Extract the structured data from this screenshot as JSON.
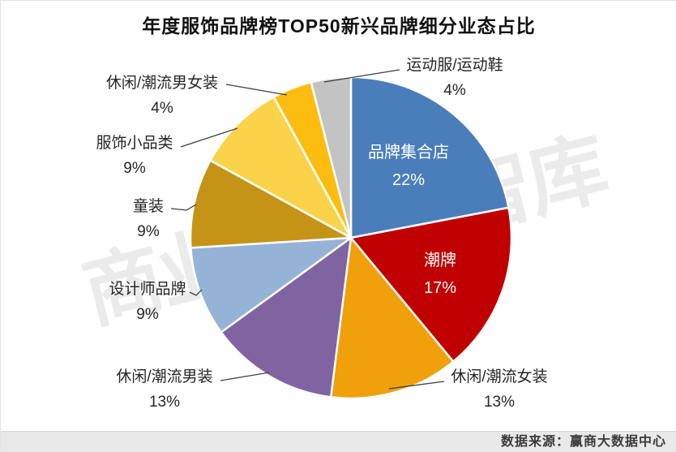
{
  "title": "年度服饰品牌榜TOP50新兴品牌细分业态占比",
  "watermark": "商业地产云智库",
  "footer": {
    "source_label": "数据来源：赢商大数据中心"
  },
  "chart_data": {
    "type": "pie",
    "title": "年度服饰品牌榜TOP50新兴品牌细分业态占比",
    "unit": "percent",
    "start_angle_deg": 0,
    "direction": "clockwise",
    "legend_position": "none",
    "slices": [
      {
        "key": "brand-collection-store",
        "label": "品牌集合店",
        "value": 22,
        "percent_label": "22%",
        "color": "#4A7EBB",
        "label_position": "inside"
      },
      {
        "key": "trendy-brand",
        "label": "潮牌",
        "value": 17,
        "percent_label": "17%",
        "color": "#C00000",
        "label_position": "inside"
      },
      {
        "key": "casual-trendy-womenswear",
        "label": "休闲/潮流女装",
        "value": 13,
        "percent_label": "13%",
        "color": "#EFA00B",
        "label_position": "outside"
      },
      {
        "key": "casual-trendy-menswear",
        "label": "休闲/潮流男装",
        "value": 13,
        "percent_label": "13%",
        "color": "#8064A2",
        "label_position": "outside"
      },
      {
        "key": "designer-brand",
        "label": "设计师品牌",
        "value": 9,
        "percent_label": "9%",
        "color": "#95B3D7",
        "label_position": "outside"
      },
      {
        "key": "kidswear",
        "label": "童装",
        "value": 9,
        "percent_label": "9%",
        "color": "#C59417",
        "label_position": "outside"
      },
      {
        "key": "apparel-small-categories",
        "label": "服饰小品类",
        "value": 9,
        "percent_label": "9%",
        "color": "#FBD34A",
        "label_position": "outside"
      },
      {
        "key": "casual-trendy-unisex",
        "label": "休闲/潮流男女装",
        "value": 4,
        "percent_label": "4%",
        "color": "#FDBD10",
        "label_position": "outside"
      },
      {
        "key": "sportswear-sport-shoes",
        "label": "运动服/运动鞋",
        "value": 4,
        "percent_label": "4%",
        "color": "#C3C3C3",
        "label_position": "outside"
      }
    ]
  }
}
